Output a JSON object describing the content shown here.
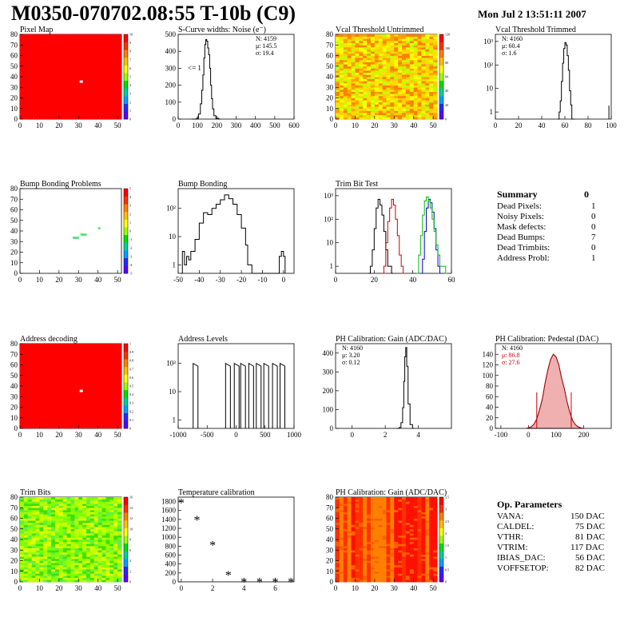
{
  "page": {
    "title": "M0350-070702.08:55 T-10b (C9)",
    "datetime": "Mon Jul  2 13:51:11 2007"
  },
  "colors": {
    "red": "#ff0000",
    "palette": [
      "#5a00ff",
      "#2828ff",
      "#00a0ff",
      "#00d0a0",
      "#00e000",
      "#a0ff00",
      "#ffff00",
      "#ffc000",
      "#ff8000",
      "#ff3000",
      "#ff0000"
    ]
  },
  "summary": {
    "title": "Summary",
    "value": "0",
    "rows": [
      {
        "label": "Dead Pixels:",
        "value": "1"
      },
      {
        "label": "Noisy Pixels:",
        "value": "0"
      },
      {
        "label": "Mask defects:",
        "value": "0"
      },
      {
        "label": "Dead Bumps:",
        "value": "7"
      },
      {
        "label": "Dead Trimbits:",
        "value": "0"
      },
      {
        "label": "Address Probl:",
        "value": "1"
      }
    ]
  },
  "op_params": {
    "title": "Op. Parameters",
    "rows": [
      {
        "label": "VANA:",
        "value": "150 DAC"
      },
      {
        "label": "CALDEL:",
        "value": "75 DAC"
      },
      {
        "label": "VTHR:",
        "value": "81 DAC"
      },
      {
        "label": "VTRIM:",
        "value": "117 DAC"
      },
      {
        "label": "IBIAS_DAC:",
        "value": "56 DAC"
      },
      {
        "label": "VOFFSETOP:",
        "value": "82 DAC"
      }
    ]
  },
  "chart_data": [
    {
      "id": "pixel-map",
      "type": "heatmap",
      "title": "Pixel Map",
      "xlim": [
        0,
        52
      ],
      "ylim": [
        0,
        80
      ],
      "xticks": [
        "0",
        "10",
        "20",
        "30",
        "40",
        "50"
      ],
      "yticks": [
        "0",
        "10",
        "20",
        "30",
        "40",
        "50",
        "60",
        "70",
        "80"
      ],
      "zticks": [
        "0",
        "1",
        "2",
        "3",
        "4",
        "5",
        "6",
        "7",
        "8",
        "9",
        "10"
      ],
      "fill_level": 10,
      "special_points": [
        {
          "x": 31,
          "y": 35,
          "value": 0
        }
      ]
    },
    {
      "id": "s-curve",
      "type": "line",
      "title": "S-Curve widths: Noise (e⁻)",
      "xlim": [
        0,
        600
      ],
      "ylim": [
        0,
        500
      ],
      "xticks": [
        "0",
        "100",
        "200",
        "300",
        "400",
        "500",
        "600"
      ],
      "yticks": [
        "0",
        "100",
        "200",
        "300",
        "400",
        "500"
      ],
      "stats": [
        "N: 4159",
        "μ: 145.5",
        "σ: 19.4"
      ],
      "annotation": "<= 1",
      "x": [
        70,
        85,
        95,
        105,
        115,
        122,
        128,
        133,
        138,
        143,
        148,
        153,
        158,
        163,
        168,
        173,
        178,
        185,
        195,
        210
      ],
      "y": [
        0,
        0,
        5,
        30,
        90,
        170,
        260,
        360,
        440,
        470,
        460,
        420,
        380,
        300,
        200,
        120,
        60,
        20,
        5,
        0
      ]
    },
    {
      "id": "vcal-untrimmed",
      "type": "heatmap",
      "title": "Vcal Threshold Untrimmed",
      "xlim": [
        0,
        52
      ],
      "ylim": [
        0,
        80
      ],
      "xticks": [
        "0",
        "10",
        "20",
        "30",
        "40",
        "50"
      ],
      "yticks": [
        "0",
        "10",
        "20",
        "30",
        "40",
        "50",
        "60",
        "70",
        "80"
      ],
      "zticks": [
        "0",
        "20",
        "40",
        "60",
        "80",
        "100",
        "120"
      ]
    },
    {
      "id": "vcal-trimmed",
      "type": "line",
      "title": "Vcal Threshold Trimmed",
      "xlim": [
        0,
        100
      ],
      "ylim": [
        0.5,
        2000
      ],
      "log_y": true,
      "xticks": [
        "0",
        "20",
        "40",
        "60",
        "80",
        "100"
      ],
      "yticks": [
        "1",
        "10",
        "10²",
        "10³"
      ],
      "stats": [
        "N: 4160",
        "μ: 60.4",
        "σ: 1.6"
      ],
      "x": [
        54,
        55,
        56,
        57,
        58,
        59,
        60,
        61,
        62,
        63,
        64,
        65,
        66,
        67
      ],
      "y": [
        0.5,
        1,
        3,
        20,
        120,
        500,
        900,
        700,
        250,
        60,
        8,
        2,
        0.5,
        0.5
      ],
      "outliers": [
        {
          "x": 98,
          "y": 1
        }
      ]
    },
    {
      "id": "bump-bonding-problems",
      "type": "heatmap",
      "title": "Bump Bonding Problems",
      "xlim": [
        0,
        52
      ],
      "ylim": [
        0,
        80
      ],
      "xticks": [
        "0",
        "10",
        "20",
        "30",
        "40",
        "50"
      ],
      "yticks": [
        "0",
        "10",
        "20",
        "30",
        "40",
        "50",
        "60",
        "70",
        "80"
      ],
      "zticks": [
        "-5",
        "-4",
        "-3",
        "-2",
        "-1",
        "0",
        "1",
        "2",
        "3",
        "4",
        "5"
      ],
      "cells": [
        {
          "x": 27,
          "y": 33
        },
        {
          "x": 28,
          "y": 33
        },
        {
          "x": 29,
          "y": 33
        },
        {
          "x": 31,
          "y": 36
        },
        {
          "x": 32,
          "y": 36
        },
        {
          "x": 33,
          "y": 36
        },
        {
          "x": 40,
          "y": 42
        }
      ]
    },
    {
      "id": "bump-bonding",
      "type": "line",
      "title": "Bump Bonding",
      "xlim": [
        -50,
        5
      ],
      "ylim": [
        0.5,
        500
      ],
      "log_y": true,
      "xticks": [
        "-50",
        "-40",
        "-30",
        "-20",
        "-10",
        "0"
      ],
      "yticks": [
        "1",
        "10",
        "10²"
      ],
      "x": [
        -49,
        -48,
        -47,
        -46,
        -45,
        -44,
        -42,
        -40,
        -38,
        -36,
        -34,
        -32,
        -30,
        -28,
        -26,
        -24,
        -22,
        -20,
        -18,
        -17,
        -16,
        -15,
        -2,
        -1,
        0
      ],
      "y": [
        0.5,
        3,
        1,
        2,
        1.5,
        3,
        8,
        30,
        70,
        60,
        100,
        140,
        200,
        300,
        220,
        140,
        60,
        20,
        5,
        1,
        1,
        0.5,
        2,
        3,
        2
      ]
    },
    {
      "id": "trim-bit-test",
      "type": "line",
      "title": "Trim Bit Test",
      "xlim": [
        0,
        60
      ],
      "ylim": [
        0.5,
        2000
      ],
      "log_y": true,
      "xticks": [
        "0",
        "20",
        "40",
        "60"
      ],
      "yticks": [
        "1",
        "10",
        "10²",
        "10³"
      ],
      "series": [
        {
          "color": "#000000",
          "x": [
            17,
            18,
            19,
            20,
            21,
            22,
            23,
            24,
            25,
            26,
            27,
            28,
            29
          ],
          "y": [
            0.5,
            1,
            5,
            40,
            300,
            700,
            400,
            150,
            30,
            5,
            1,
            1,
            0.5
          ]
        },
        {
          "color": "#cc0000",
          "x": [
            24,
            25,
            26,
            27,
            28,
            29,
            30,
            31,
            32,
            33,
            34,
            35
          ],
          "y": [
            0.5,
            1,
            10,
            80,
            300,
            700,
            400,
            100,
            20,
            3,
            1,
            0.5
          ]
        },
        {
          "color": "#0000cc",
          "x": [
            44,
            45,
            46,
            47,
            48,
            49,
            50,
            51,
            52,
            53,
            54
          ],
          "y": [
            0.5,
            2,
            30,
            300,
            700,
            500,
            200,
            40,
            5,
            1,
            0.5
          ]
        },
        {
          "color": "#00bb00",
          "x": [
            42,
            43,
            44,
            45,
            46,
            47,
            48,
            49,
            50,
            51,
            52,
            53,
            54,
            55,
            56,
            57
          ],
          "y": [
            0.5,
            3,
            20,
            150,
            600,
            900,
            600,
            300,
            100,
            30,
            8,
            3,
            1,
            1,
            1,
            0.5
          ]
        }
      ]
    },
    {
      "id": "address-decoding",
      "type": "heatmap",
      "title": "Address decoding",
      "xlim": [
        0,
        52
      ],
      "ylim": [
        0,
        80
      ],
      "xticks": [
        "0",
        "10",
        "20",
        "30",
        "40",
        "50"
      ],
      "yticks": [
        "0",
        "10",
        "20",
        "30",
        "40",
        "50",
        "60",
        "70",
        "80"
      ],
      "zticks": [
        "0",
        "0.1",
        "0.2",
        "0.3",
        "0.4",
        "0.5",
        "0.6",
        "0.7",
        "0.8",
        "0.9",
        "1"
      ],
      "fill_level": 1,
      "special_points": [
        {
          "x": 31,
          "y": 35,
          "value": 0
        }
      ]
    },
    {
      "id": "address-levels",
      "type": "line",
      "title": "Address Levels",
      "xlim": [
        -1000,
        1000
      ],
      "ylim": [
        0.5,
        500
      ],
      "log_y": true,
      "xticks": [
        "-1000",
        "-500",
        "0",
        "500",
        "1000"
      ],
      "yticks": [
        "1",
        "10",
        "10²"
      ],
      "peaks": [
        -700,
        -140,
        10,
        120,
        260,
        390,
        520,
        670,
        800
      ],
      "peak_height": 100
    },
    {
      "id": "ph-gain",
      "type": "line",
      "title": "PH Calibration: Gain (ADC/DAC)",
      "xlim": [
        -1,
        6
      ],
      "ylim": [
        0,
        450
      ],
      "xticks": [
        "0",
        "2",
        "4"
      ],
      "yticks": [
        "0",
        "100",
        "200",
        "300",
        "400"
      ],
      "stats": [
        "N: 4160",
        "μ: 3.20",
        "σ: 0.12"
      ],
      "x": [
        2.7,
        2.85,
        2.95,
        3.05,
        3.12,
        3.18,
        3.24,
        3.3,
        3.38,
        3.5,
        3.65
      ],
      "y": [
        0,
        5,
        30,
        110,
        250,
        380,
        430,
        330,
        130,
        20,
        0
      ]
    },
    {
      "id": "ph-pedestal",
      "type": "area",
      "title": "PH Calibration: Pedestal (DAC)",
      "xlim": [
        -120,
        300
      ],
      "ylim": [
        0,
        160
      ],
      "xticks": [
        "-100",
        "0",
        "100",
        "200"
      ],
      "yticks": [
        "0",
        "20",
        "40",
        "60",
        "80",
        "100",
        "120",
        "140"
      ],
      "stats": [
        "N: 4160",
        "μ: 86.8",
        "σ: 27.6"
      ],
      "x": [
        -10,
        0,
        10,
        20,
        30,
        40,
        50,
        60,
        70,
        80,
        90,
        100,
        110,
        120,
        130,
        140,
        150,
        160,
        170,
        180,
        190,
        200
      ],
      "y": [
        0,
        1,
        3,
        8,
        18,
        35,
        55,
        85,
        110,
        130,
        140,
        135,
        120,
        95,
        75,
        50,
        30,
        15,
        7,
        3,
        1,
        0
      ],
      "fit_range": [
        30,
        155
      ]
    },
    {
      "id": "trim-bits",
      "type": "heatmap",
      "title": "Trim Bits",
      "xlim": [
        0,
        52
      ],
      "ylim": [
        0,
        80
      ],
      "xticks": [
        "0",
        "10",
        "20",
        "30",
        "40",
        "50"
      ],
      "yticks": [
        "0",
        "10",
        "20",
        "30",
        "40",
        "50",
        "60",
        "70",
        "80"
      ],
      "zticks": [
        "0",
        "2",
        "4",
        "6",
        "8",
        "10",
        "12",
        "14",
        "16"
      ]
    },
    {
      "id": "temperature-calibration",
      "type": "scatter",
      "title": "Temperature calibration",
      "xlim": [
        -0.2,
        7.2
      ],
      "ylim": [
        0,
        1900
      ],
      "xticks": [
        "0",
        "2",
        "4",
        "6"
      ],
      "yticks": [
        "0",
        "200",
        "400",
        "600",
        "800",
        "1000",
        "1200",
        "1400",
        "1600",
        "1800"
      ],
      "x": [
        0,
        1,
        2,
        3,
        4,
        5,
        6,
        7
      ],
      "y": [
        1780,
        1400,
        830,
        160,
        10,
        10,
        10,
        10
      ]
    },
    {
      "id": "ph-gain-map",
      "type": "heatmap",
      "title": "PH Calibration: Gain (ADC/DAC)",
      "xlim": [
        0,
        52
      ],
      "ylim": [
        0,
        80
      ],
      "xticks": [
        "0",
        "10",
        "20",
        "30",
        "40",
        "50"
      ],
      "yticks": [
        "0",
        "10",
        "20",
        "30",
        "40",
        "50",
        "60",
        "70",
        "80"
      ],
      "zticks": [
        "0",
        "0.5",
        "1",
        "1.5",
        "2",
        "2.5",
        "3",
        "3.5"
      ]
    }
  ]
}
